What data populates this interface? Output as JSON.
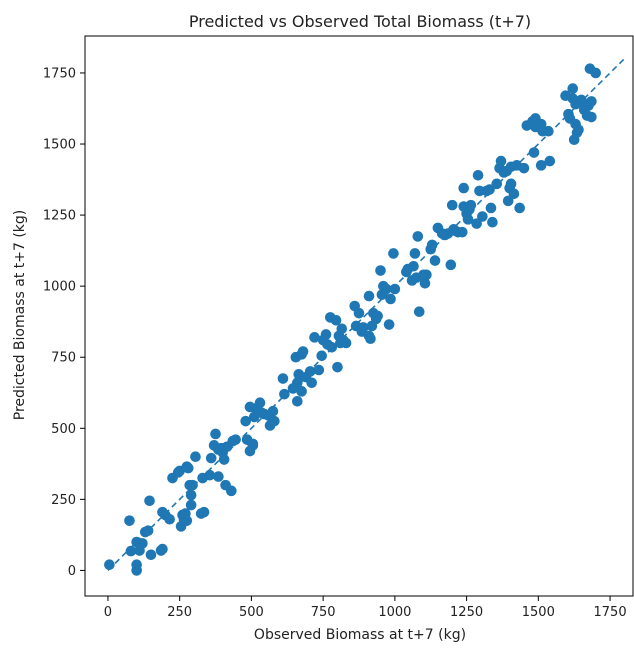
{
  "chart_data": {
    "type": "scatter",
    "title": "Predicted vs Observed Total Biomass (t+7)",
    "xlabel": "Observed Biomass at t+7 (kg)",
    "ylabel": "Predicted Biomass at t+7 (kg)",
    "xlim": [
      -80,
      1830
    ],
    "ylim": [
      -90,
      1880
    ],
    "xticks": [
      0,
      250,
      500,
      750,
      1000,
      1250,
      1500,
      1750
    ],
    "yticks": [
      0,
      250,
      500,
      750,
      1000,
      1250,
      1500,
      1750
    ],
    "grid": false,
    "colors": {
      "points": "#1f77b4",
      "reference_line": "#1f77b4"
    },
    "reference_line": {
      "style": "dashed",
      "from": [
        0,
        0
      ],
      "to": [
        1800,
        1800
      ]
    },
    "series": [
      {
        "points": [
          [
            5,
            20
          ],
          [
            75,
            175
          ],
          [
            80,
            68
          ],
          [
            100,
            0
          ],
          [
            100,
            20
          ],
          [
            100,
            100
          ],
          [
            110,
            70
          ],
          [
            120,
            95
          ],
          [
            130,
            135
          ],
          [
            140,
            140
          ],
          [
            145,
            245
          ],
          [
            150,
            55
          ],
          [
            185,
            70
          ],
          [
            190,
            75
          ],
          [
            190,
            205
          ],
          [
            200,
            195
          ],
          [
            215,
            180
          ],
          [
            225,
            325
          ],
          [
            245,
            345
          ],
          [
            250,
            350
          ],
          [
            255,
            155
          ],
          [
            260,
            195
          ],
          [
            265,
            180
          ],
          [
            270,
            200
          ],
          [
            275,
            365
          ],
          [
            275,
            175
          ],
          [
            280,
            360
          ],
          [
            285,
            300
          ],
          [
            290,
            265
          ],
          [
            290,
            230
          ],
          [
            295,
            300
          ],
          [
            305,
            400
          ],
          [
            325,
            200
          ],
          [
            330,
            325
          ],
          [
            335,
            205
          ],
          [
            355,
            335
          ],
          [
            360,
            395
          ],
          [
            370,
            440
          ],
          [
            375,
            480
          ],
          [
            385,
            330
          ],
          [
            385,
            425
          ],
          [
            395,
            430
          ],
          [
            400,
            415
          ],
          [
            405,
            390
          ],
          [
            410,
            300
          ],
          [
            415,
            435
          ],
          [
            430,
            280
          ],
          [
            435,
            455
          ],
          [
            445,
            460
          ],
          [
            480,
            525
          ],
          [
            485,
            460
          ],
          [
            495,
            575
          ],
          [
            495,
            420
          ],
          [
            505,
            440
          ],
          [
            505,
            445
          ],
          [
            510,
            540
          ],
          [
            515,
            570
          ],
          [
            525,
            560
          ],
          [
            530,
            590
          ],
          [
            535,
            555
          ],
          [
            545,
            550
          ],
          [
            560,
            545
          ],
          [
            565,
            510
          ],
          [
            575,
            560
          ],
          [
            580,
            525
          ],
          [
            610,
            675
          ],
          [
            615,
            620
          ],
          [
            645,
            640
          ],
          [
            655,
            750
          ],
          [
            660,
            595
          ],
          [
            660,
            660
          ],
          [
            665,
            690
          ],
          [
            670,
            680
          ],
          [
            675,
            630
          ],
          [
            675,
            760
          ],
          [
            680,
            770
          ],
          [
            690,
            680
          ],
          [
            705,
            700
          ],
          [
            710,
            660
          ],
          [
            720,
            820
          ],
          [
            735,
            705
          ],
          [
            745,
            755
          ],
          [
            750,
            810
          ],
          [
            760,
            830
          ],
          [
            765,
            795
          ],
          [
            775,
            890
          ],
          [
            780,
            785
          ],
          [
            795,
            880
          ],
          [
            800,
            715
          ],
          [
            805,
            825
          ],
          [
            810,
            800
          ],
          [
            815,
            850
          ],
          [
            820,
            810
          ],
          [
            830,
            800
          ],
          [
            860,
            930
          ],
          [
            865,
            860
          ],
          [
            875,
            905
          ],
          [
            885,
            840
          ],
          [
            890,
            855
          ],
          [
            910,
            825
          ],
          [
            910,
            965
          ],
          [
            915,
            815
          ],
          [
            920,
            860
          ],
          [
            925,
            905
          ],
          [
            935,
            885
          ],
          [
            940,
            895
          ],
          [
            950,
            1055
          ],
          [
            955,
            970
          ],
          [
            960,
            1000
          ],
          [
            970,
            990
          ],
          [
            980,
            865
          ],
          [
            985,
            955
          ],
          [
            995,
            1115
          ],
          [
            1000,
            990
          ],
          [
            1040,
            1050
          ],
          [
            1045,
            1060
          ],
          [
            1060,
            1020
          ],
          [
            1065,
            1070
          ],
          [
            1070,
            1115
          ],
          [
            1075,
            1030
          ],
          [
            1080,
            1175
          ],
          [
            1085,
            910
          ],
          [
            1100,
            1040
          ],
          [
            1105,
            1035
          ],
          [
            1105,
            1010
          ],
          [
            1110,
            1040
          ],
          [
            1125,
            1130
          ],
          [
            1130,
            1145
          ],
          [
            1140,
            1090
          ],
          [
            1150,
            1205
          ],
          [
            1165,
            1185
          ],
          [
            1175,
            1180
          ],
          [
            1185,
            1185
          ],
          [
            1195,
            1075
          ],
          [
            1200,
            1285
          ],
          [
            1205,
            1200
          ],
          [
            1210,
            1195
          ],
          [
            1220,
            1190
          ],
          [
            1235,
            1190
          ],
          [
            1240,
            1280
          ],
          [
            1240,
            1345
          ],
          [
            1250,
            1255
          ],
          [
            1255,
            1235
          ],
          [
            1260,
            1270
          ],
          [
            1265,
            1285
          ],
          [
            1285,
            1220
          ],
          [
            1290,
            1390
          ],
          [
            1295,
            1335
          ],
          [
            1305,
            1245
          ],
          [
            1320,
            1335
          ],
          [
            1330,
            1340
          ],
          [
            1335,
            1275
          ],
          [
            1340,
            1225
          ],
          [
            1355,
            1360
          ],
          [
            1365,
            1415
          ],
          [
            1370,
            1440
          ],
          [
            1380,
            1400
          ],
          [
            1390,
            1405
          ],
          [
            1395,
            1300
          ],
          [
            1400,
            1345
          ],
          [
            1405,
            1360
          ],
          [
            1405,
            1420
          ],
          [
            1415,
            1325
          ],
          [
            1425,
            1425
          ],
          [
            1435,
            1275
          ],
          [
            1450,
            1415
          ],
          [
            1460,
            1565
          ],
          [
            1480,
            1580
          ],
          [
            1485,
            1470
          ],
          [
            1490,
            1560
          ],
          [
            1490,
            1590
          ],
          [
            1510,
            1570
          ],
          [
            1510,
            1425
          ],
          [
            1515,
            1545
          ],
          [
            1535,
            1545
          ],
          [
            1540,
            1440
          ],
          [
            1595,
            1670
          ],
          [
            1605,
            1605
          ],
          [
            1610,
            1590
          ],
          [
            1620,
            1660
          ],
          [
            1620,
            1695
          ],
          [
            1625,
            1515
          ],
          [
            1630,
            1570
          ],
          [
            1630,
            1640
          ],
          [
            1635,
            1540
          ],
          [
            1640,
            1550
          ],
          [
            1645,
            1645
          ],
          [
            1650,
            1655
          ],
          [
            1660,
            1620
          ],
          [
            1670,
            1600
          ],
          [
            1675,
            1635
          ],
          [
            1680,
            1765
          ],
          [
            1685,
            1650
          ],
          [
            1685,
            1595
          ],
          [
            1700,
            1750
          ]
        ]
      }
    ]
  }
}
